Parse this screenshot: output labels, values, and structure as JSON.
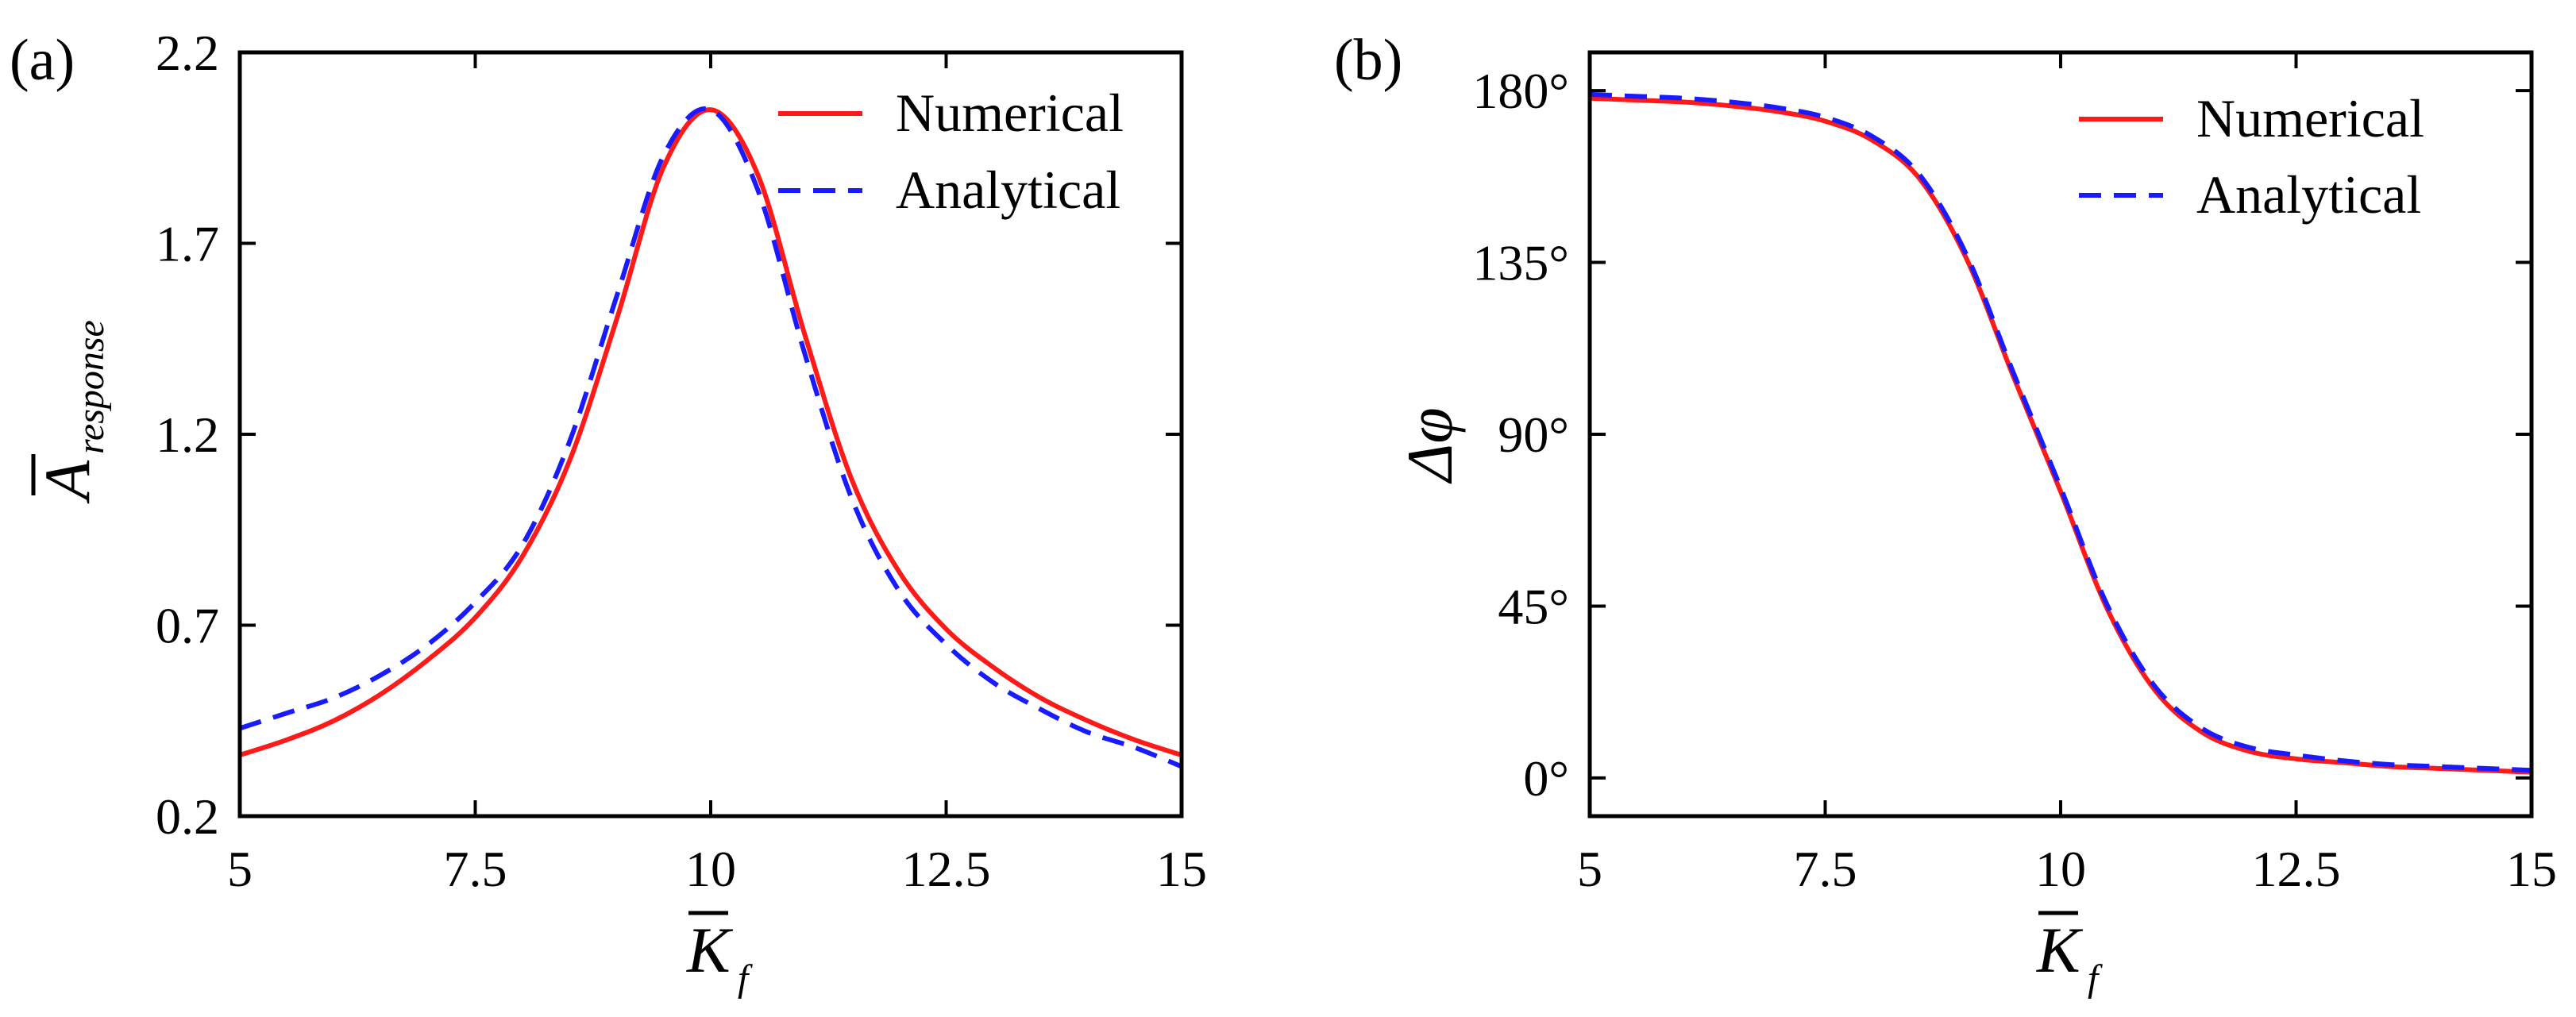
{
  "chart_data": [
    {
      "type": "line",
      "panel_label": "(a)",
      "title": "",
      "xlabel": {
        "base": "K",
        "overbar": true,
        "subscript": "f"
      },
      "ylabel": {
        "base": "A",
        "overbar": true,
        "subscript": "response"
      },
      "xlim": [
        5,
        15
      ],
      "ylim": [
        0.2,
        2.2
      ],
      "xticks": [
        5,
        7.5,
        10,
        12.5,
        15
      ],
      "xtick_labels": [
        "5",
        "7.5",
        "10",
        "12.5",
        "15"
      ],
      "yticks": [
        0.2,
        0.7,
        1.2,
        1.7,
        2.2
      ],
      "ytick_labels": [
        "0.2",
        "0.7",
        "1.2",
        "1.7",
        "2.2"
      ],
      "grid": false,
      "legend_position": "top-right",
      "x": [
        5,
        5.5,
        6,
        6.5,
        7,
        7.5,
        8,
        8.5,
        9,
        9.5,
        10,
        10.5,
        11,
        11.5,
        12,
        12.5,
        13,
        13.5,
        14,
        14.5,
        15
      ],
      "series": [
        {
          "name": "Numerical",
          "color": "#ff1a1a",
          "style": "solid",
          "values": [
            0.36,
            0.4,
            0.45,
            0.52,
            0.61,
            0.72,
            0.88,
            1.13,
            1.5,
            1.9,
            2.05,
            1.88,
            1.46,
            1.08,
            0.84,
            0.69,
            0.59,
            0.51,
            0.45,
            0.4,
            0.36
          ]
        },
        {
          "name": "Analytical",
          "color": "#1a1aff",
          "style": "dashed",
          "values": [
            0.43,
            0.47,
            0.51,
            0.57,
            0.65,
            0.76,
            0.91,
            1.18,
            1.56,
            1.93,
            2.05,
            1.84,
            1.41,
            1.03,
            0.79,
            0.65,
            0.55,
            0.48,
            0.42,
            0.38,
            0.33
          ]
        }
      ]
    },
    {
      "type": "line",
      "panel_label": "(b)",
      "title": "",
      "xlabel": {
        "base": "K",
        "overbar": true,
        "subscript": "f"
      },
      "ylabel": {
        "base": "Δφ",
        "overbar": false,
        "subscript": ""
      },
      "xlim": [
        5,
        15
      ],
      "ylim": [
        -10,
        190
      ],
      "xticks": [
        5,
        7.5,
        10,
        12.5,
        15
      ],
      "xtick_labels": [
        "5",
        "7.5",
        "10",
        "12.5",
        "15"
      ],
      "yticks": [
        0,
        45,
        90,
        135,
        180
      ],
      "ytick_labels": [
        "0°",
        "45°",
        "90°",
        "135°",
        "180°"
      ],
      "grid": false,
      "legend_position": "top-right",
      "x": [
        5,
        5.5,
        6,
        6.5,
        7,
        7.5,
        8,
        8.5,
        9,
        9.5,
        10,
        10.5,
        11,
        11.5,
        12,
        12.5,
        13,
        13.5,
        14,
        14.5,
        15
      ],
      "series": [
        {
          "name": "Numerical",
          "color": "#ff1a1a",
          "style": "solid",
          "values": [
            178,
            177.5,
            177,
            176,
            174.5,
            172,
            167,
            157,
            136,
            105,
            75,
            44,
            23,
            12,
            7,
            5,
            4,
            3,
            2.5,
            2,
            1.5
          ]
        },
        {
          "name": "Analytical",
          "color": "#1a1aff",
          "style": "dashed",
          "values": [
            179,
            178.5,
            178,
            177,
            175.5,
            173,
            168,
            158,
            137,
            106,
            76,
            45,
            24,
            13,
            8,
            6,
            4.5,
            3.5,
            3,
            2.5,
            2
          ]
        }
      ]
    }
  ]
}
